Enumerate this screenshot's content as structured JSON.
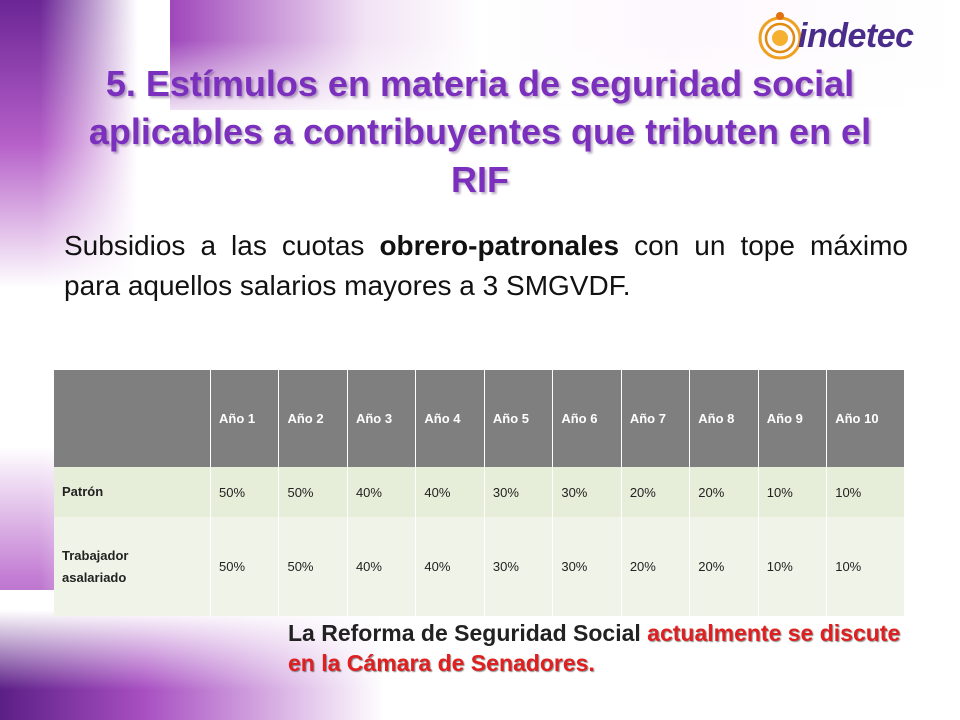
{
  "logo": {
    "text": "indetec"
  },
  "title": "5. Estímulos en materia de seguridad social aplicables a contribuyentes que tributen en el RIF",
  "subtitle": {
    "pre": "Subsidios a las cuotas ",
    "bold": "obrero-patronales",
    "post": " con un tope máximo para aquellos salarios mayores a 3 SMGVDF."
  },
  "table": {
    "headers": [
      "",
      "Año 1",
      "Año 2",
      "Año 3",
      "Año 4",
      "Año 5",
      "Año 6",
      "Año 7",
      "Año 8",
      "Año 9",
      "Año 10"
    ],
    "rows": [
      {
        "label": "Patrón",
        "values": [
          "50%",
          "50%",
          "40%",
          "40%",
          "30%",
          "30%",
          "20%",
          "20%",
          "10%",
          "10%"
        ]
      },
      {
        "label_line1": "Trabajador",
        "label_line2": "asalariado",
        "values": [
          "50%",
          "50%",
          "40%",
          "40%",
          "30%",
          "30%",
          "20%",
          "20%",
          "10%",
          "10%"
        ]
      }
    ]
  },
  "note": {
    "normal": "La Reforma de Seguridad Social ",
    "highlight": "actualmente se discute en la Cámara de Senadores."
  },
  "colors": {
    "title": "#7b2fbd",
    "highlight": "#e02020",
    "header_bg": "#7f7f7f",
    "row_bg": "#e6edd8"
  }
}
